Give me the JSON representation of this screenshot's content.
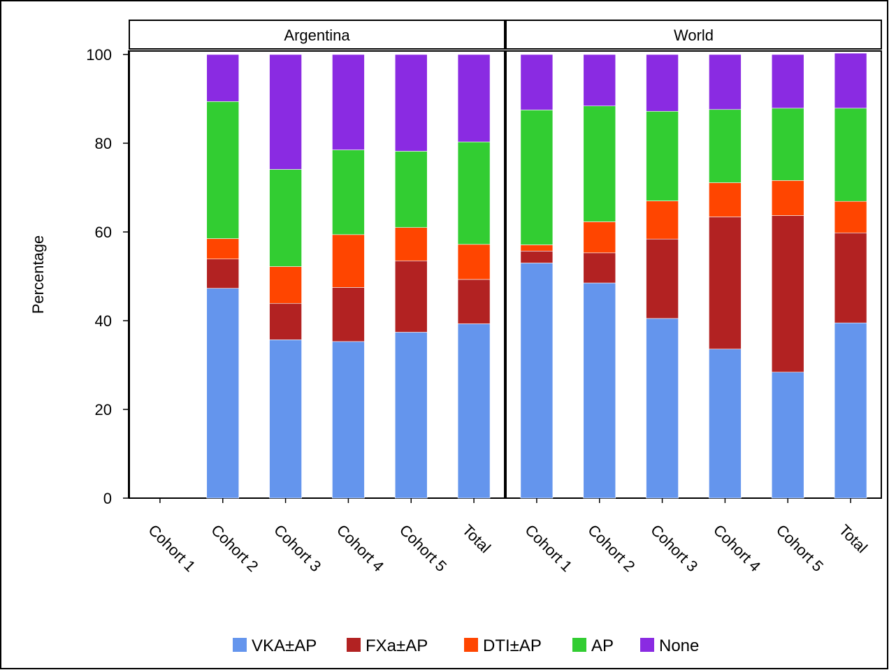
{
  "chart_data": {
    "type": "bar",
    "stacked": true,
    "ylabel": "Percentage",
    "ylim": [
      0,
      100
    ],
    "yticks": [
      0,
      20,
      40,
      60,
      80,
      100
    ],
    "grid": false,
    "legend_position": "bottom",
    "categories": [
      "Cohort 1",
      "Cohort 2",
      "Cohort 3",
      "Cohort 4",
      "Cohort 5",
      "Total"
    ],
    "legend": [
      {
        "name": "VKA±AP",
        "color": "#6495ED"
      },
      {
        "name": "FXa±AP",
        "color": "#B22222"
      },
      {
        "name": "DTI±AP",
        "color": "#FF4500"
      },
      {
        "name": "AP",
        "color": "#32CD32"
      },
      {
        "name": "None",
        "color": "#8A2BE2"
      }
    ],
    "panels": [
      {
        "title": "Argentina",
        "series": [
          {
            "name": "VKA±AP",
            "values": [
              null,
              47.3,
              35.7,
              35.3,
              37.4,
              39.3
            ]
          },
          {
            "name": "FXa±AP",
            "values": [
              null,
              6.6,
              8.2,
              12.2,
              16.1,
              10.0
            ]
          },
          {
            "name": "DTI±AP",
            "values": [
              null,
              4.6,
              8.3,
              11.9,
              7.5,
              7.9
            ]
          },
          {
            "name": "AP",
            "values": [
              null,
              30.9,
              21.9,
              19.1,
              17.2,
              23.1
            ]
          },
          {
            "name": "None",
            "values": [
              null,
              10.6,
              25.9,
              21.5,
              21.8,
              19.7
            ]
          }
        ]
      },
      {
        "title": "World",
        "series": [
          {
            "name": "VKA±AP",
            "values": [
              53.0,
              48.5,
              40.5,
              33.6,
              28.4,
              39.5
            ]
          },
          {
            "name": "FXa±AP",
            "values": [
              2.7,
              6.8,
              17.9,
              29.8,
              35.3,
              20.3
            ]
          },
          {
            "name": "DTI±AP",
            "values": [
              1.4,
              7.0,
              8.6,
              7.7,
              7.9,
              7.1
            ]
          },
          {
            "name": "AP",
            "values": [
              30.4,
              26.1,
              20.2,
              16.5,
              16.3,
              21.0
            ]
          },
          {
            "name": "None",
            "values": [
              12.5,
              11.6,
              12.8,
              12.4,
              12.1,
              12.4
            ]
          }
        ]
      }
    ]
  }
}
